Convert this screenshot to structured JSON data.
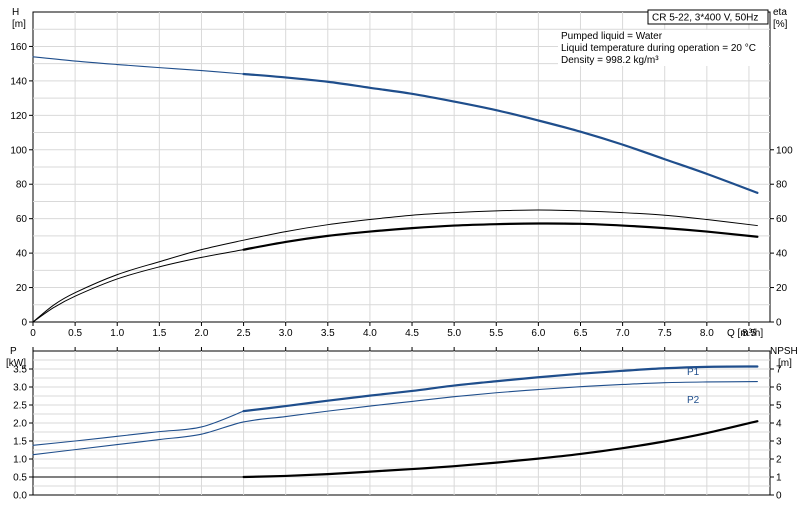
{
  "chart_data": [
    {
      "type": "line",
      "panel": "top",
      "xlabel": "Q [m³/h]",
      "ylabel_left": [
        "H",
        "[m]"
      ],
      "ylabel_right": [
        "eta",
        "[%]"
      ],
      "x_ticks": [
        "0",
        "0.5",
        "1.0",
        "1.5",
        "2.0",
        "2.5",
        "3.0",
        "3.5",
        "4.0",
        "4.5",
        "5.0",
        "5.5",
        "6.0",
        "6.5",
        "7.0",
        "7.5",
        "8.0",
        "8.5"
      ],
      "y_left_ticks": [
        "0",
        "20",
        "40",
        "60",
        "80",
        "100",
        "120",
        "140",
        "160"
      ],
      "y_right_ticks": [
        "0",
        "20",
        "40",
        "60",
        "80",
        "100"
      ],
      "xlim": [
        0,
        8.75
      ],
      "ylim": [
        0,
        180
      ],
      "grid": true,
      "info_box": "CR 5-22, 3*400 V, 50Hz",
      "info_lines": [
        "Pumped liquid = Water",
        "Liquid temperature during operation = 20 °C",
        "Density = 998.2 kg/m³"
      ],
      "series": [
        {
          "id": "head",
          "color": "#1f4e8c",
          "x": [
            0,
            0.5,
            1.0,
            1.5,
            2.0,
            2.5,
            3.0,
            3.5,
            4.0,
            4.5,
            5.0,
            5.5,
            6.0,
            6.5,
            7.0,
            7.5,
            8.0,
            8.6
          ],
          "y": [
            154,
            151.5,
            149.5,
            147.7,
            146,
            144,
            142,
            139.5,
            136,
            132.5,
            128,
            123,
            117,
            110.5,
            103,
            94.5,
            86,
            75
          ]
        },
        {
          "id": "eta-thin",
          "color": "#000000",
          "x": [
            0,
            0.25,
            0.5,
            1.0,
            1.5,
            2.0,
            2.5,
            3.0,
            3.5,
            4.0,
            4.5,
            5.0,
            5.5,
            6.0,
            6.5,
            7.0,
            7.5,
            8.0,
            8.6
          ],
          "y": [
            0,
            10,
            17,
            27.5,
            35,
            42,
            47.5,
            52.5,
            56.5,
            59.5,
            62,
            63.5,
            64.5,
            65,
            64.5,
            63.5,
            62,
            59.5,
            56
          ]
        },
        {
          "id": "eta-lower-thin",
          "color": "#000000",
          "x": [
            0,
            0.25,
            0.5,
            1.0,
            1.5,
            2.0,
            2.5
          ],
          "y": [
            0,
            8.5,
            15,
            25,
            32,
            37.5,
            42
          ]
        },
        {
          "id": "eta-bold",
          "color": "#000000",
          "x": [
            2.5,
            3.0,
            3.5,
            4.0,
            4.5,
            5.0,
            5.5,
            6.0,
            6.5,
            7.0,
            7.5,
            8.0,
            8.6
          ],
          "y": [
            42,
            46.5,
            50,
            52.5,
            54.5,
            56,
            56.8,
            57.2,
            57,
            56,
            54.5,
            52.5,
            49.5
          ]
        }
      ]
    },
    {
      "type": "line",
      "panel": "bottom",
      "ylabel_left": [
        "P",
        "[kW]"
      ],
      "ylabel_right": [
        "NPSH",
        "[m]"
      ],
      "y_left_ticks": [
        "0.0",
        "0.5",
        "1.0",
        "1.5",
        "2.0",
        "2.5",
        "3.0",
        "3.5"
      ],
      "y_right_ticks": [
        "0",
        "1",
        "2",
        "3",
        "4",
        "5",
        "6",
        "7"
      ],
      "xlim": [
        0,
        8.75
      ],
      "ylim": [
        0,
        4.0
      ],
      "grid": true,
      "series": [
        {
          "id": "P1",
          "name": "P1",
          "color": "#1f4e8c",
          "x": [
            0,
            0.5,
            1.0,
            1.5,
            2.0,
            2.5,
            3.0,
            3.5,
            4.0,
            4.5,
            5.0,
            5.5,
            6.0,
            6.5,
            7.0,
            7.5,
            8.0,
            8.6
          ],
          "y": [
            1.38,
            1.5,
            1.63,
            1.76,
            1.89,
            2.33,
            2.47,
            2.62,
            2.76,
            2.89,
            3.04,
            3.16,
            3.27,
            3.37,
            3.45,
            3.52,
            3.56,
            3.57
          ]
        },
        {
          "id": "P2",
          "name": "P2",
          "color": "#1f4e8c",
          "x": [
            0,
            0.5,
            1.0,
            1.5,
            2.0,
            2.5,
            3.0,
            3.5,
            4.0,
            4.5,
            5.0,
            5.5,
            6.0,
            6.5,
            7.0,
            7.5,
            8.0,
            8.6
          ],
          "y": [
            1.12,
            1.26,
            1.4,
            1.54,
            1.69,
            2.03,
            2.18,
            2.33,
            2.47,
            2.6,
            2.73,
            2.84,
            2.93,
            3.01,
            3.07,
            3.12,
            3.14,
            3.15
          ]
        },
        {
          "id": "NPSH",
          "color": "#000000",
          "x": [
            0,
            0.5,
            1.0,
            1.5,
            2.0,
            2.5,
            3.0,
            3.5,
            4.0,
            4.5,
            5.0,
            5.5,
            6.0,
            6.5,
            7.0,
            7.5,
            8.0,
            8.6
          ],
          "y": [
            0.5,
            0.5,
            0.5,
            0.5,
            0.5,
            0.5,
            0.53,
            0.58,
            0.65,
            0.72,
            0.8,
            0.9,
            1.01,
            1.14,
            1.3,
            1.49,
            1.72,
            2.05
          ]
        }
      ]
    }
  ]
}
